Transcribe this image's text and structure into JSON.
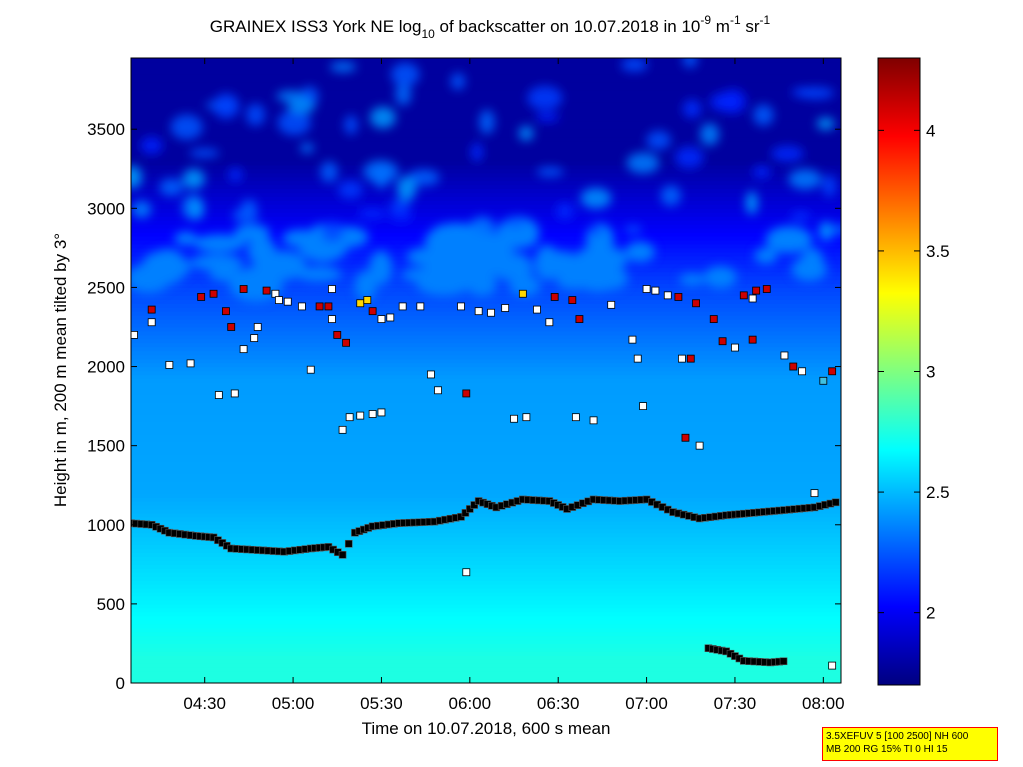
{
  "chart_data": {
    "type": "heatmap",
    "title_prefix": "GRAINEX ISS3 York NE log",
    "title_sub": "10",
    "title_mid": " of backscatter on 10.07.2018 in 10",
    "title_exp1": "-9",
    "title_unit1": " m",
    "title_exp2": "-1",
    "title_unit2": " sr",
    "title_exp3": "-1",
    "xlabel": "Time on 10.07.2018, 600 s mean",
    "ylabel": "Height in m, 200 m mean tilted by 3°",
    "x_ticks": [
      "04:30",
      "05:00",
      "05:30",
      "06:00",
      "06:30",
      "07:00",
      "07:30",
      "08:00"
    ],
    "x_tick_hours": [
      4.5,
      5.0,
      5.5,
      6.0,
      6.5,
      7.0,
      7.5,
      8.0
    ],
    "xlim_hours": [
      4.083,
      8.1
    ],
    "y_ticks": [
      "0",
      "500",
      "1000",
      "1500",
      "2000",
      "2500",
      "3000",
      "3500"
    ],
    "ylim": [
      0,
      3950
    ],
    "colorbar": {
      "ticks": [
        "2",
        "2.5",
        "3",
        "3.5",
        "4"
      ],
      "range": [
        1.7,
        4.3
      ],
      "colormap": "jet"
    },
    "field_levels": [
      {
        "height_top": 300,
        "value": 2.75
      },
      {
        "height_top": 900,
        "value": 2.62
      },
      {
        "height_top": 1500,
        "value": 2.45
      },
      {
        "height_top": 2350,
        "value": 2.42
      },
      {
        "height_top": 2650,
        "value": 2.2
      },
      {
        "height_top": 3950,
        "value": 1.78
      }
    ],
    "layer_detections": [
      {
        "name": "boundary layer top",
        "x_hours": [
          4.083,
          4.2,
          4.3,
          4.45,
          4.55,
          4.65,
          4.8,
          4.95,
          5.1,
          5.2,
          5.28,
          5.35,
          5.45,
          5.6,
          5.8,
          5.95,
          6.05,
          6.15,
          6.3,
          6.45,
          6.55,
          6.7,
          6.85,
          7.0,
          7.15,
          7.3,
          7.45,
          7.55,
          7.95,
          8.1
        ],
        "y_values": [
          1010,
          1000,
          950,
          930,
          920,
          850,
          840,
          830,
          850,
          860,
          810,
          950,
          990,
          1010,
          1020,
          1050,
          1150,
          1110,
          1160,
          1150,
          1100,
          1160,
          1150,
          1160,
          1080,
          1040,
          1060,
          1070,
          1110,
          1150
        ]
      },
      {
        "name": "surface layer",
        "x_hours": [
          7.35,
          7.45,
          7.55,
          7.7,
          7.8
        ],
        "y_values": [
          220,
          200,
          140,
          130,
          140
        ]
      }
    ],
    "cloud_detections": [
      {
        "x_hour": 4.1,
        "y": 2200,
        "color": "#ffffff"
      },
      {
        "x_hour": 4.2,
        "y": 2280,
        "color": "#ffffff"
      },
      {
        "x_hour": 4.2,
        "y": 2360,
        "color": "#cc0000"
      },
      {
        "x_hour": 4.3,
        "y": 2010,
        "color": "#ffffff"
      },
      {
        "x_hour": 4.42,
        "y": 2020,
        "color": "#ffffff"
      },
      {
        "x_hour": 4.48,
        "y": 2440,
        "color": "#cc0000"
      },
      {
        "x_hour": 4.55,
        "y": 2460,
        "color": "#cc0000"
      },
      {
        "x_hour": 4.58,
        "y": 1820,
        "color": "#ffffff"
      },
      {
        "x_hour": 4.67,
        "y": 1830,
        "color": "#ffffff"
      },
      {
        "x_hour": 4.62,
        "y": 2350,
        "color": "#cc0000"
      },
      {
        "x_hour": 4.65,
        "y": 2250,
        "color": "#cc0000"
      },
      {
        "x_hour": 4.72,
        "y": 2110,
        "color": "#ffffff"
      },
      {
        "x_hour": 4.78,
        "y": 2180,
        "color": "#ffffff"
      },
      {
        "x_hour": 4.72,
        "y": 2490,
        "color": "#cc0000"
      },
      {
        "x_hour": 4.8,
        "y": 2250,
        "color": "#ffffff"
      },
      {
        "x_hour": 4.85,
        "y": 2480,
        "color": "#cc0000"
      },
      {
        "x_hour": 4.9,
        "y": 2460,
        "color": "#ffffff"
      },
      {
        "x_hour": 4.92,
        "y": 2420,
        "color": "#ffffff"
      },
      {
        "x_hour": 4.97,
        "y": 2410,
        "color": "#ffffff"
      },
      {
        "x_hour": 5.05,
        "y": 2380,
        "color": "#ffffff"
      },
      {
        "x_hour": 5.1,
        "y": 1980,
        "color": "#ffffff"
      },
      {
        "x_hour": 5.15,
        "y": 2380,
        "color": "#cc0000"
      },
      {
        "x_hour": 5.2,
        "y": 2380,
        "color": "#cc0000"
      },
      {
        "x_hour": 5.22,
        "y": 2300,
        "color": "#ffffff"
      },
      {
        "x_hour": 5.22,
        "y": 2490,
        "color": "#ffffff"
      },
      {
        "x_hour": 5.25,
        "y": 2200,
        "color": "#cc0000"
      },
      {
        "x_hour": 5.3,
        "y": 2150,
        "color": "#cc0000"
      },
      {
        "x_hour": 5.32,
        "y": 1680,
        "color": "#ffffff"
      },
      {
        "x_hour": 5.28,
        "y": 1600,
        "color": "#ffffff"
      },
      {
        "x_hour": 5.38,
        "y": 1690,
        "color": "#ffffff"
      },
      {
        "x_hour": 5.38,
        "y": 2400,
        "color": "#ffd700"
      },
      {
        "x_hour": 5.42,
        "y": 2420,
        "color": "#ffd700"
      },
      {
        "x_hour": 5.45,
        "y": 1700,
        "color": "#ffffff"
      },
      {
        "x_hour": 5.5,
        "y": 1710,
        "color": "#ffffff"
      },
      {
        "x_hour": 5.45,
        "y": 2350,
        "color": "#cc0000"
      },
      {
        "x_hour": 5.5,
        "y": 2300,
        "color": "#ffffff"
      },
      {
        "x_hour": 5.55,
        "y": 2310,
        "color": "#ffffff"
      },
      {
        "x_hour": 5.62,
        "y": 2380,
        "color": "#ffffff"
      },
      {
        "x_hour": 5.72,
        "y": 2380,
        "color": "#ffffff"
      },
      {
        "x_hour": 5.78,
        "y": 1950,
        "color": "#ffffff"
      },
      {
        "x_hour": 5.82,
        "y": 1850,
        "color": "#ffffff"
      },
      {
        "x_hour": 5.95,
        "y": 2380,
        "color": "#ffffff"
      },
      {
        "x_hour": 5.98,
        "y": 1830,
        "color": "#cc0000"
      },
      {
        "x_hour": 5.98,
        "y": 700,
        "color": "#ffffff"
      },
      {
        "x_hour": 6.05,
        "y": 2350,
        "color": "#ffffff"
      },
      {
        "x_hour": 6.12,
        "y": 2340,
        "color": "#ffffff"
      },
      {
        "x_hour": 6.2,
        "y": 2370,
        "color": "#ffffff"
      },
      {
        "x_hour": 6.25,
        "y": 1670,
        "color": "#ffffff"
      },
      {
        "x_hour": 6.32,
        "y": 1680,
        "color": "#ffffff"
      },
      {
        "x_hour": 6.3,
        "y": 2460,
        "color": "#ffd700"
      },
      {
        "x_hour": 6.38,
        "y": 2360,
        "color": "#ffffff"
      },
      {
        "x_hour": 6.45,
        "y": 2280,
        "color": "#ffffff"
      },
      {
        "x_hour": 6.48,
        "y": 2440,
        "color": "#cc0000"
      },
      {
        "x_hour": 6.58,
        "y": 2420,
        "color": "#cc0000"
      },
      {
        "x_hour": 6.62,
        "y": 2300,
        "color": "#cc0000"
      },
      {
        "x_hour": 6.6,
        "y": 1680,
        "color": "#ffffff"
      },
      {
        "x_hour": 6.7,
        "y": 1660,
        "color": "#ffffff"
      },
      {
        "x_hour": 6.8,
        "y": 2390,
        "color": "#ffffff"
      },
      {
        "x_hour": 6.92,
        "y": 2170,
        "color": "#ffffff"
      },
      {
        "x_hour": 6.95,
        "y": 2050,
        "color": "#ffffff"
      },
      {
        "x_hour": 6.98,
        "y": 1750,
        "color": "#ffffff"
      },
      {
        "x_hour": 7.0,
        "y": 2490,
        "color": "#ffffff"
      },
      {
        "x_hour": 7.05,
        "y": 2480,
        "color": "#ffffff"
      },
      {
        "x_hour": 7.12,
        "y": 2450,
        "color": "#ffffff"
      },
      {
        "x_hour": 7.18,
        "y": 2440,
        "color": "#cc0000"
      },
      {
        "x_hour": 7.2,
        "y": 2050,
        "color": "#ffffff"
      },
      {
        "x_hour": 7.25,
        "y": 2050,
        "color": "#cc0000"
      },
      {
        "x_hour": 7.22,
        "y": 1550,
        "color": "#cc0000"
      },
      {
        "x_hour": 7.3,
        "y": 1500,
        "color": "#ffffff"
      },
      {
        "x_hour": 7.28,
        "y": 2400,
        "color": "#cc0000"
      },
      {
        "x_hour": 7.38,
        "y": 2300,
        "color": "#cc0000"
      },
      {
        "x_hour": 7.43,
        "y": 2160,
        "color": "#cc0000"
      },
      {
        "x_hour": 7.5,
        "y": 2120,
        "color": "#ffffff"
      },
      {
        "x_hour": 7.55,
        "y": 2450,
        "color": "#cc0000"
      },
      {
        "x_hour": 7.6,
        "y": 2430,
        "color": "#ffffff"
      },
      {
        "x_hour": 7.62,
        "y": 2480,
        "color": "#cc0000"
      },
      {
        "x_hour": 7.68,
        "y": 2490,
        "color": "#cc0000"
      },
      {
        "x_hour": 7.6,
        "y": 2170,
        "color": "#cc0000"
      },
      {
        "x_hour": 7.78,
        "y": 2070,
        "color": "#ffffff"
      },
      {
        "x_hour": 7.83,
        "y": 2000,
        "color": "#cc0000"
      },
      {
        "x_hour": 7.88,
        "y": 1970,
        "color": "#ffffff"
      },
      {
        "x_hour": 7.95,
        "y": 1200,
        "color": "#ffffff"
      },
      {
        "x_hour": 8.0,
        "y": 1910,
        "color": "#40c0e0"
      },
      {
        "x_hour": 8.05,
        "y": 1970,
        "color": "#cc0000"
      },
      {
        "x_hour": 8.05,
        "y": 110,
        "color": "#ffffff"
      }
    ]
  },
  "info_box": {
    "line1": "3.5XEFUV 5 [100 2500] NH 600",
    "line2": "MB 200 RG 15% TI 0 HI 15",
    "background": "#ffff00",
    "border": "#ff0000"
  }
}
